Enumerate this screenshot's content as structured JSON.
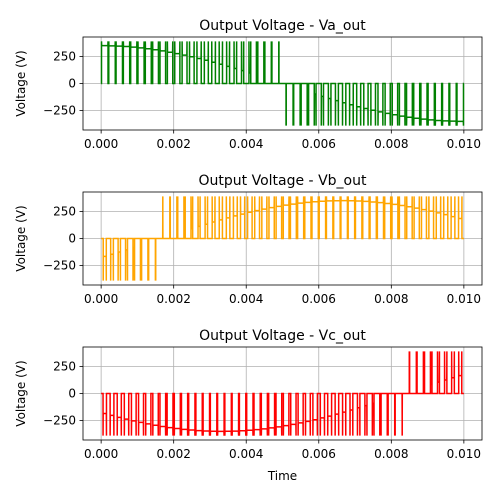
{
  "chart_data": [
    {
      "type": "line",
      "title": "Output Voltage - Va_out",
      "xlabel": "",
      "ylabel": "Voltage (V)",
      "xlim": [
        -0.0005,
        0.0105
      ],
      "ylim": [
        -430,
        430
      ],
      "xticks": [
        "0.000",
        "0.002",
        "0.004",
        "0.006",
        "0.008",
        "0.010"
      ],
      "yticks": [
        "250",
        "0",
        "−250"
      ],
      "xtick_values": [
        0,
        0.002,
        0.004,
        0.006,
        0.008,
        0.01
      ],
      "ytick_values": [
        250,
        0,
        -250
      ],
      "grid": true,
      "color": "#008000",
      "series": [
        {
          "values_description_free": true,
          "x_start": 0,
          "x_end": 0.01,
          "amplitude": 390,
          "reference_peak": 350,
          "reference_phase_deg": 90,
          "pulses": 50
        }
      ]
    },
    {
      "type": "line",
      "title": "Output Voltage - Vb_out",
      "xlabel": "",
      "ylabel": "Voltage (V)",
      "xlim": [
        -0.0005,
        0.0105
      ],
      "ylim": [
        -430,
        430
      ],
      "xticks": [
        "0.000",
        "0.002",
        "0.004",
        "0.006",
        "0.008",
        "0.010"
      ],
      "yticks": [
        "250",
        "0",
        "−250"
      ],
      "xtick_values": [
        0,
        0.002,
        0.004,
        0.006,
        0.008,
        0.01
      ],
      "ytick_values": [
        250,
        0,
        -250
      ],
      "grid": true,
      "color": "#ffa500",
      "series": [
        {
          "x_start": 0,
          "x_end": 0.01,
          "amplitude": 390,
          "reference_peak": 350,
          "reference_phase_deg": -30,
          "pulses": 50
        }
      ]
    },
    {
      "type": "line",
      "title": "Output Voltage - Vc_out",
      "xlabel": "Time",
      "ylabel": "Voltage (V)",
      "xlim": [
        -0.0005,
        0.0105
      ],
      "ylim": [
        -430,
        430
      ],
      "xticks": [
        "0.000",
        "0.002",
        "0.004",
        "0.006",
        "0.008",
        "0.010"
      ],
      "yticks": [
        "250",
        "0",
        "−250"
      ],
      "xtick_values": [
        0,
        0.002,
        0.004,
        0.006,
        0.008,
        0.01
      ],
      "ytick_values": [
        250,
        0,
        -250
      ],
      "grid": true,
      "color": "#ff0000",
      "series": [
        {
          "x_start": 0,
          "x_end": 0.01,
          "amplitude": 390,
          "reference_peak": 350,
          "reference_phase_deg": 210,
          "pulses": 50
        }
      ]
    }
  ]
}
